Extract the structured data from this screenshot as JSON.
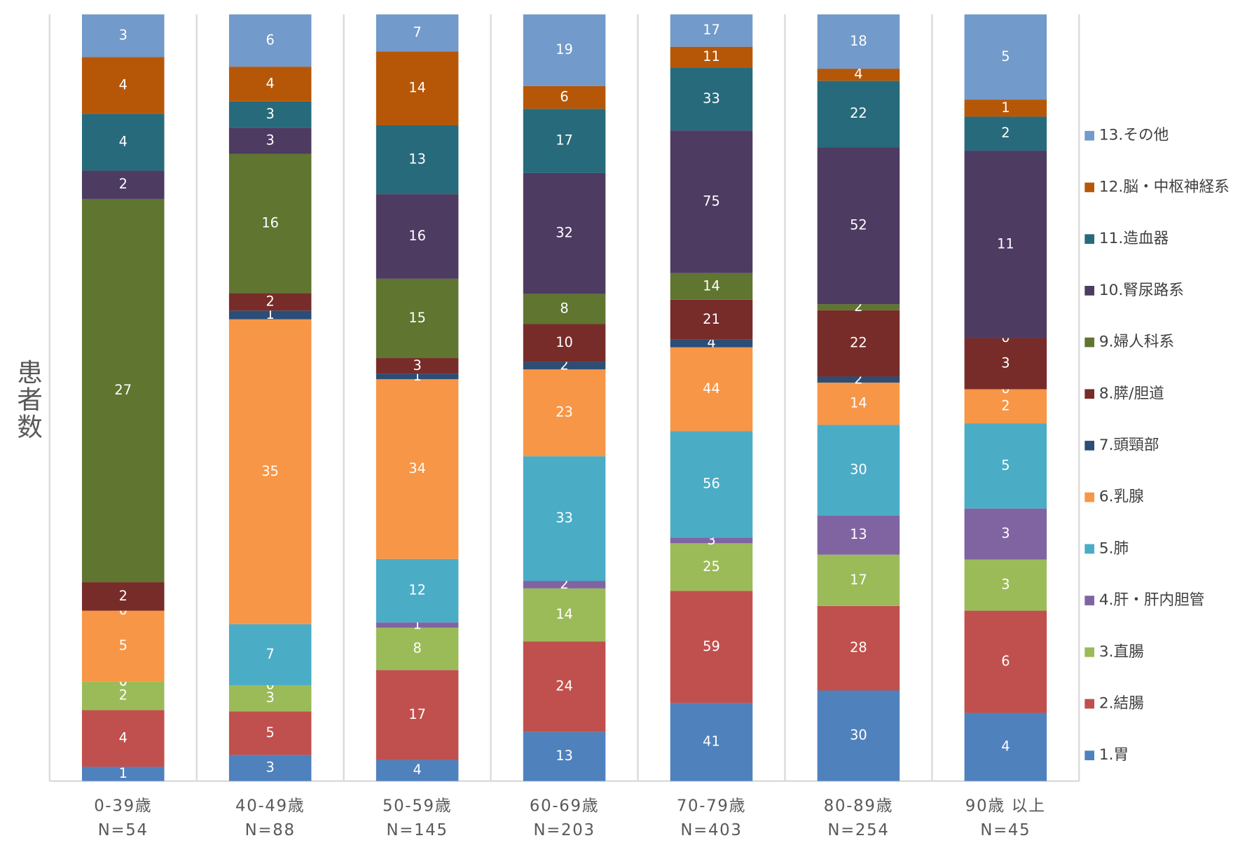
{
  "chart_data": {
    "type": "bar",
    "stacking": "percent",
    "y_label": "患者数",
    "categories": [
      "0-39歳",
      "40-49歳",
      "50-59歳",
      "60-69歳",
      "70-79歳",
      "80-89歳",
      "90歳 以上"
    ],
    "category_notes": [
      "N=54",
      "N=88",
      "N=145",
      "N=203",
      "N=403",
      "N=254",
      "N=45"
    ],
    "series": [
      {
        "name": "1.胃",
        "color": "#4f81bd",
        "values": [
          1,
          3,
          4,
          13,
          41,
          30,
          4
        ]
      },
      {
        "name": "2.結腸",
        "color": "#c0504d",
        "values": [
          4,
          5,
          17,
          24,
          59,
          28,
          6
        ]
      },
      {
        "name": "3.直腸",
        "color": "#9bbb59",
        "values": [
          2,
          3,
          8,
          14,
          25,
          17,
          3
        ]
      },
      {
        "name": "4.肝・肝内胆管",
        "color": "#8064a2",
        "values": [
          0,
          0,
          1,
          2,
          3,
          13,
          3
        ]
      },
      {
        "name": "5.肺",
        "color": "#4bacc6",
        "values": [
          0,
          7,
          12,
          33,
          56,
          30,
          5
        ]
      },
      {
        "name": "6.乳腺",
        "color": "#f79646",
        "values": [
          5,
          35,
          34,
          23,
          44,
          14,
          2
        ]
      },
      {
        "name": "7.頭頸部",
        "color": "#2c4d75",
        "values": [
          0,
          1,
          1,
          2,
          4,
          2,
          0
        ]
      },
      {
        "name": "8.膵/胆道",
        "color": "#772c2a",
        "values": [
          2,
          2,
          3,
          10,
          21,
          22,
          3
        ]
      },
      {
        "name": "9.婦人科系",
        "color": "#5f7530",
        "values": [
          27,
          16,
          15,
          8,
          14,
          2,
          0
        ]
      },
      {
        "name": "10.腎尿路系",
        "color": "#4d3b62",
        "values": [
          2,
          3,
          16,
          32,
          75,
          52,
          11
        ]
      },
      {
        "name": "11.造血器",
        "color": "#276a7c",
        "values": [
          4,
          3,
          13,
          17,
          33,
          22,
          2
        ]
      },
      {
        "name": "12.脳・中枢神経系",
        "color": "#b65708",
        "values": [
          4,
          4,
          14,
          6,
          11,
          4,
          1
        ]
      },
      {
        "name": "13.その他",
        "color": "#729aca",
        "values": [
          3,
          6,
          7,
          19,
          17,
          18,
          5
        ]
      }
    ]
  }
}
